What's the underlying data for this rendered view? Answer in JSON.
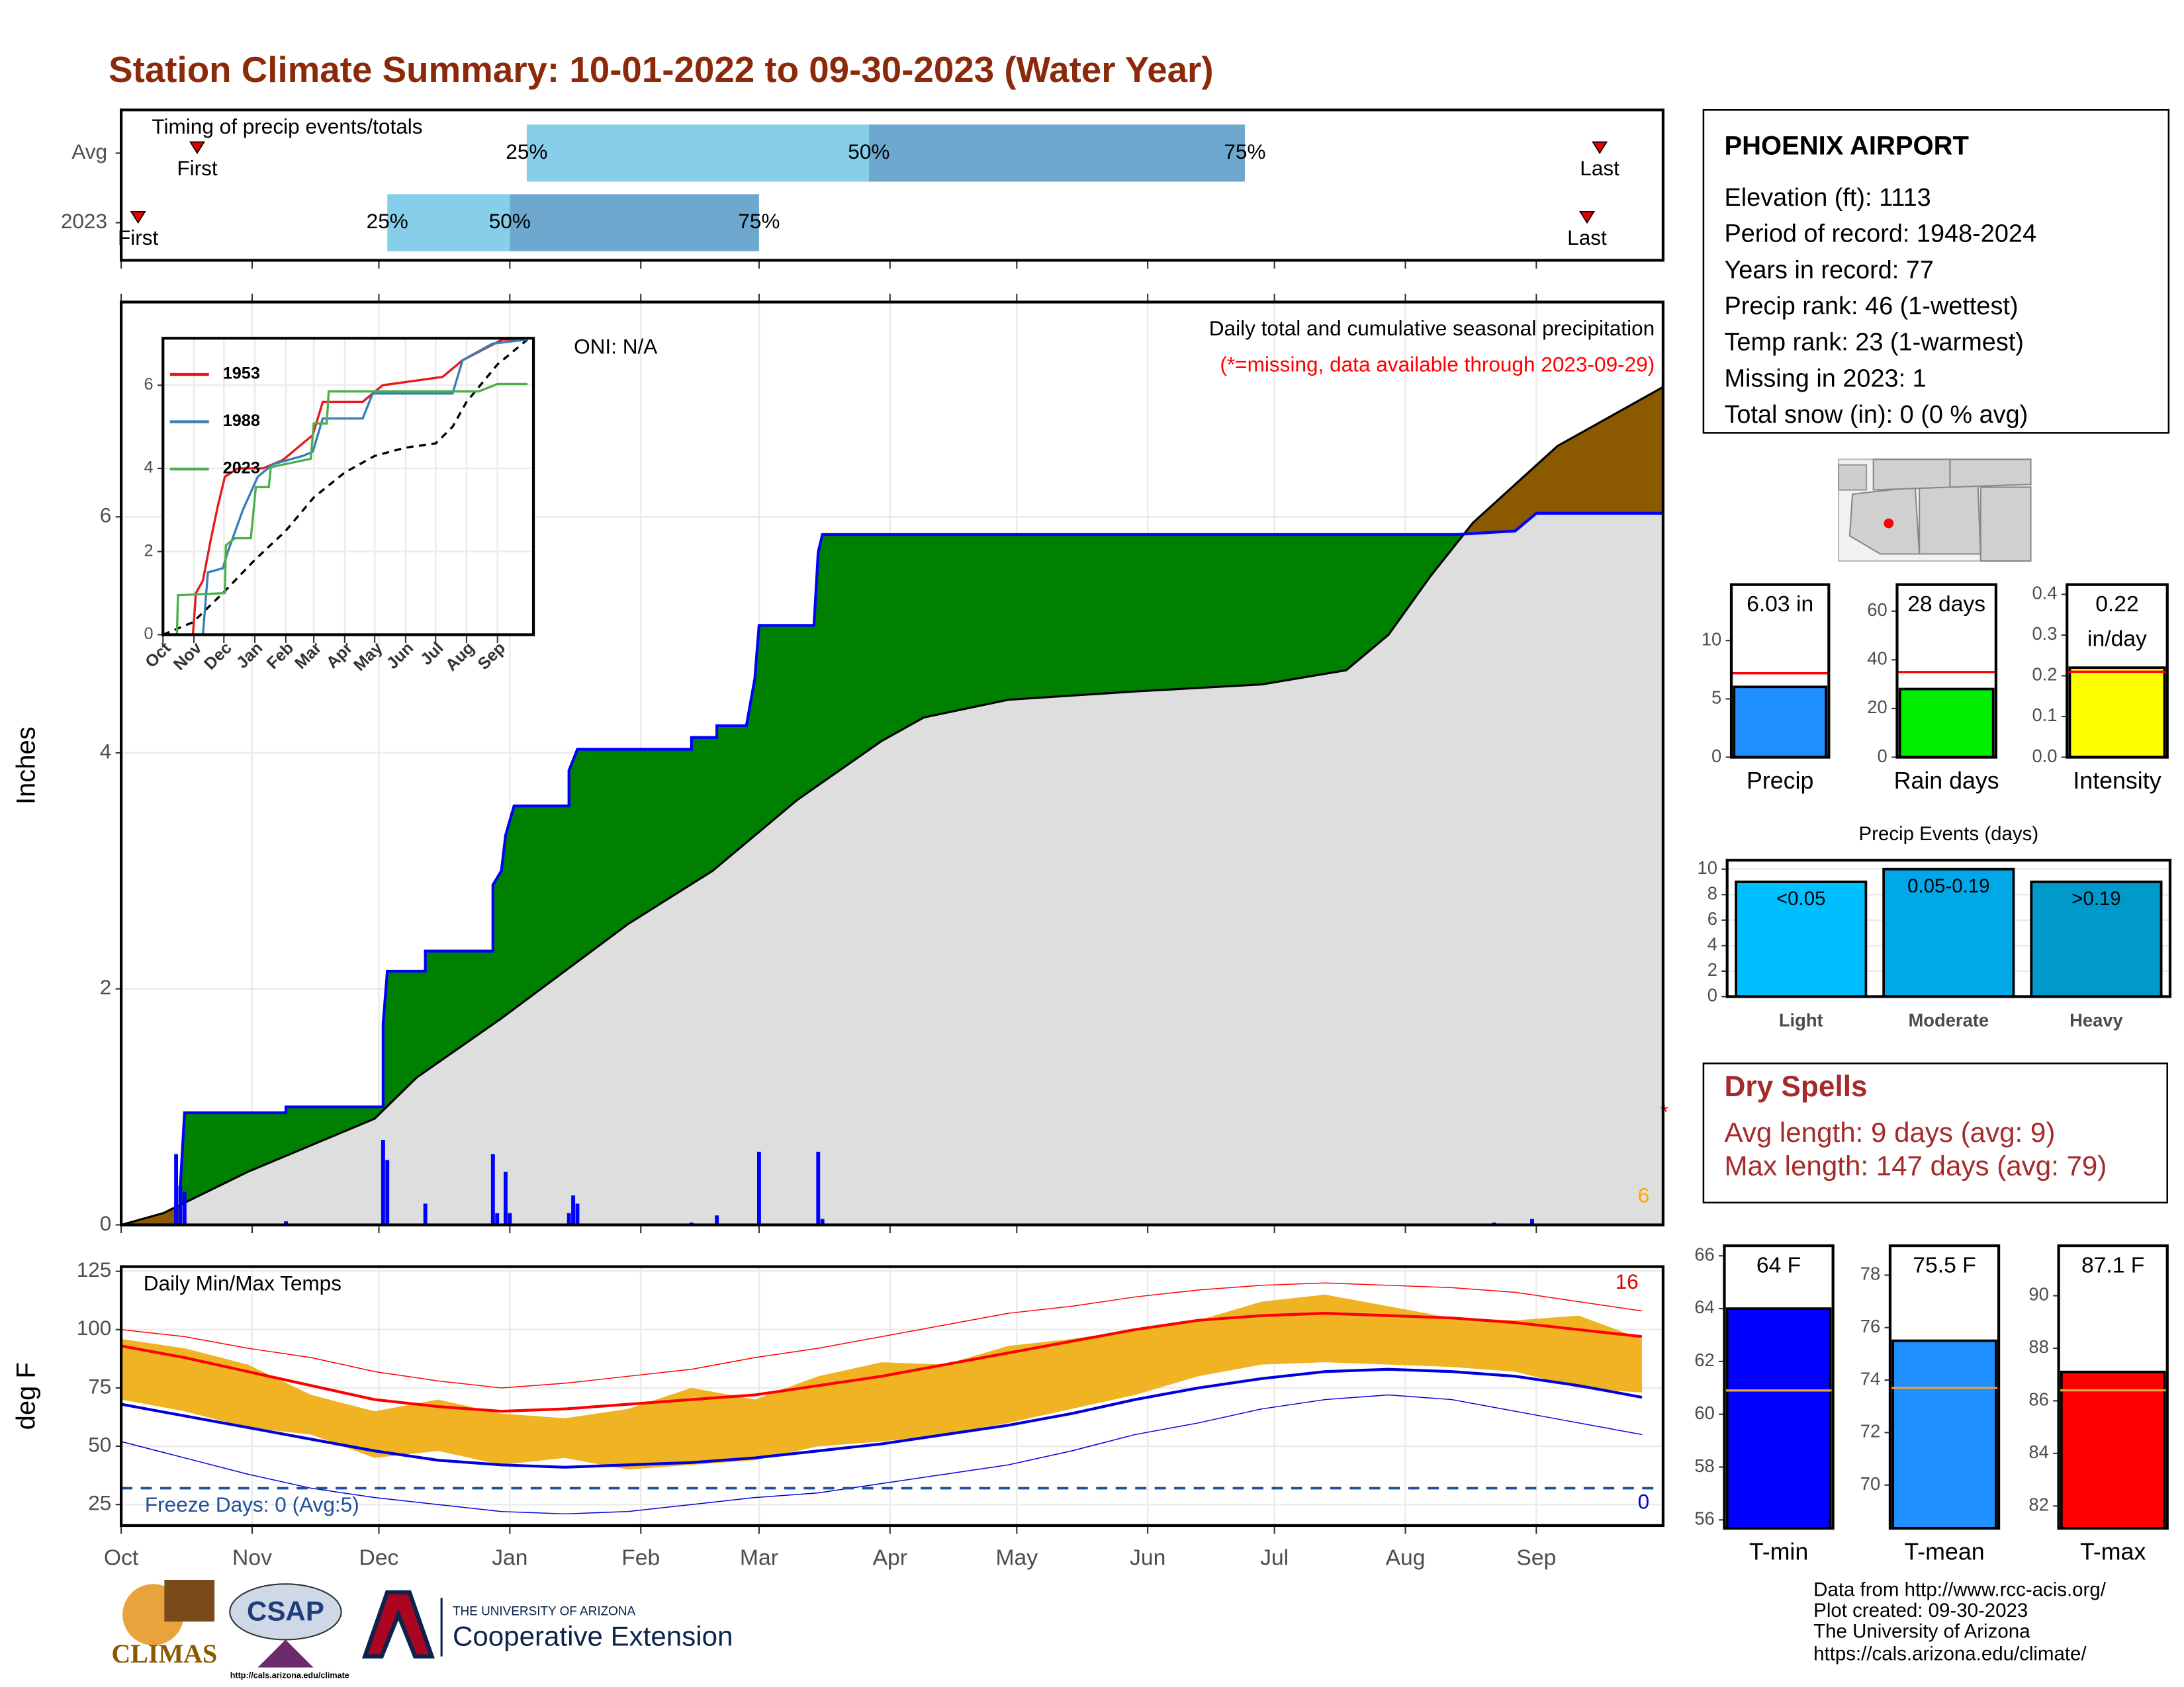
{
  "title": "Station Climate Summary: 10-01-2022 to 09-30-2023 (Water Year)",
  "station": {
    "name": "PHOENIX AIRPORT",
    "lines": [
      "Elevation (ft): 1113",
      "Period of record: 1948-2024",
      "Years in record: 77",
      "Precip rank: 46 (1-wettest)",
      "Temp rank: 23 (1-warmest)",
      "Missing in 2023: 1",
      "Total snow (in): 0 (0 % avg)"
    ]
  },
  "dry_spells": {
    "title": "Dry Spells",
    "lines": [
      "Avg length: 9 days (avg: 9)",
      "Max length: 147 days (avg: 79)"
    ]
  },
  "credits": [
    "Data from http://www.rcc-acis.org/",
    "Plot created: 09-30-2023",
    "The University of Arizona",
    "https://cals.arizona.edu/climate/"
  ],
  "logos": {
    "climas": "CLIMAS",
    "csap": "CSAP",
    "csap_url": "http://cals.arizona.edu/climate",
    "university": "THE UNIVERSITY OF ARIZONA",
    "extension": "Cooperative Extension"
  },
  "chart_data": [
    {
      "type": "timing",
      "title": "Timing of precip events/totals",
      "categories": [
        "Avg",
        "2023"
      ],
      "first": [
        18,
        4
      ],
      "p25": [
        96,
        63
      ],
      "p50": [
        177,
        92
      ],
      "p75": [
        266,
        151
      ],
      "last": [
        350,
        347
      ],
      "first_label": "First",
      "last_label": "Last",
      "percentile_labels": [
        "25%",
        "50%",
        "75%"
      ],
      "colors": [
        "#87ceeb",
        "#6fa8cf"
      ],
      "marker_color": "#e00000",
      "xlim": [
        0,
        365
      ],
      "xticks": [
        0,
        31,
        61,
        92,
        123,
        151,
        182,
        212,
        243,
        273,
        304,
        335
      ]
    },
    {
      "type": "cumulative",
      "title": "Daily total and cumulative seasonal precipitation",
      "subtitle": "(*=missing, data available through 2023-09-29)",
      "y_label": "Inches",
      "annotations": [
        "ONI: N/A",
        "*",
        "6"
      ],
      "annotation_colors": [
        "#000000",
        "#ff0000",
        "#ffa500"
      ],
      "cumulative_x": [
        0,
        14,
        14,
        15,
        39,
        39,
        62,
        62,
        63,
        72,
        72,
        88,
        88,
        90,
        91,
        93,
        106,
        106,
        108,
        135,
        135,
        141,
        141,
        148,
        150,
        151,
        164,
        165,
        166,
        316,
        330,
        335,
        365
      ],
      "cumulative_values": [
        0,
        0,
        0.33,
        0.95,
        0.95,
        1.0,
        1.0,
        1.7,
        2.15,
        2.15,
        2.32,
        2.32,
        2.88,
        3.0,
        3.3,
        3.55,
        3.55,
        3.85,
        4.03,
        4.03,
        4.13,
        4.13,
        4.23,
        4.23,
        4.63,
        5.08,
        5.08,
        5.7,
        5.85,
        5.85,
        5.88,
        6.03,
        6.03
      ],
      "average_x": [
        0,
        10,
        30,
        50,
        60,
        70,
        90,
        120,
        140,
        160,
        170,
        180,
        190,
        210,
        240,
        270,
        290,
        300,
        310,
        320,
        340,
        365
      ],
      "average_values": [
        0,
        0.1,
        0.45,
        0.75,
        0.9,
        1.25,
        1.75,
        2.55,
        3.0,
        3.6,
        3.85,
        4.1,
        4.3,
        4.45,
        4.52,
        4.58,
        4.7,
        5.0,
        5.5,
        5.95,
        6.6,
        7.1
      ],
      "daily_x": [
        13,
        14,
        15,
        39,
        62,
        63,
        72,
        88,
        89,
        91,
        92,
        106,
        107,
        108,
        135,
        141,
        151,
        165,
        166,
        171,
        321,
        325,
        334,
        347
      ],
      "daily_values": [
        0.6,
        0.33,
        0.28,
        0.03,
        0.72,
        0.55,
        0.18,
        0.6,
        0.1,
        0.45,
        0.1,
        0.1,
        0.25,
        0.18,
        0.02,
        0.08,
        0.62,
        0.62,
        0.05,
        0.01,
        0.01,
        0.02,
        0.05,
        0.01
      ],
      "fill_above_average": "#008000",
      "fill_below_average": "#8b5a00",
      "fill_average": "#dedede",
      "line_color": "#0000ff",
      "average_line_color": "#000000",
      "bar_color": "#0000ff",
      "xlim": [
        0,
        365
      ],
      "xticks": [
        0,
        31,
        61,
        92,
        123,
        151,
        182,
        212,
        243,
        273,
        304,
        335
      ],
      "ylim": [
        0,
        7.82
      ],
      "yticks": [
        0,
        2,
        4,
        6
      ],
      "grid": true
    },
    {
      "type": "line",
      "series": [
        {
          "name": "1953",
          "color": "#e41a1c",
          "x": [
            0,
            30,
            33,
            40,
            48,
            55,
            62,
            75,
            100,
            120,
            150,
            160,
            200,
            220,
            280,
            300,
            340,
            365
          ],
          "values": [
            0,
            0,
            1.0,
            1.3,
            2.3,
            3.1,
            3.8,
            4.0,
            4.0,
            4.2,
            4.8,
            5.6,
            5.6,
            6.0,
            6.2,
            6.6,
            7.1,
            7.1
          ]
        },
        {
          "name": "1988",
          "color": "#377eb8",
          "x": [
            0,
            40,
            45,
            60,
            65,
            80,
            95,
            110,
            140,
            150,
            160,
            200,
            210,
            290,
            300,
            330,
            365
          ],
          "values": [
            0,
            0,
            1.5,
            1.6,
            2.0,
            3.0,
            3.8,
            4.1,
            4.3,
            4.4,
            5.2,
            5.2,
            5.8,
            5.8,
            6.6,
            7.0,
            7.1
          ]
        },
        {
          "name": "2023",
          "color": "#4daf4a",
          "x": [
            0,
            14,
            15,
            62,
            63,
            72,
            88,
            93,
            106,
            108,
            148,
            151,
            164,
            166,
            316,
            335,
            365
          ],
          "values": [
            0,
            0,
            0.95,
            1.0,
            2.15,
            2.32,
            2.32,
            3.55,
            3.55,
            4.03,
            4.23,
            5.08,
            5.08,
            5.85,
            5.85,
            6.03,
            6.03
          ]
        }
      ],
      "average": {
        "color": "#000000",
        "x": [
          0,
          30,
          60,
          92,
          123,
          151,
          182,
          212,
          243,
          273,
          290,
          304,
          335,
          365
        ],
        "values": [
          0,
          0.3,
          1.0,
          1.8,
          2.5,
          3.3,
          3.9,
          4.3,
          4.5,
          4.6,
          5.0,
          5.6,
          6.5,
          7.1
        ]
      },
      "xlim": [
        0,
        371
      ],
      "xticks": [
        {
          "value": 0,
          "label": "Oct"
        },
        {
          "value": 31,
          "label": "Nov"
        },
        {
          "value": 61,
          "label": "Dec"
        },
        {
          "value": 92,
          "label": "Jan"
        },
        {
          "value": 123,
          "label": "Feb"
        },
        {
          "value": 151,
          "label": "Mar"
        },
        {
          "value": 182,
          "label": "Apr"
        },
        {
          "value": 212,
          "label": "May"
        },
        {
          "value": 243,
          "label": "Jun"
        },
        {
          "value": 273,
          "label": "Jul"
        },
        {
          "value": 304,
          "label": "Aug"
        },
        {
          "value": 335,
          "label": "Sep"
        }
      ],
      "ylim": [
        0,
        7.13
      ],
      "yticks": [
        0,
        2,
        4,
        6
      ],
      "grid": true
    },
    {
      "type": "temperature",
      "title": "Daily Min/Max Temps",
      "y_label": "deg F",
      "annotations": [
        "Freeze Days: 0 (Avg:5)",
        "16",
        "0"
      ],
      "annotation_colors": [
        "#1f4e9a",
        "#e00000",
        "#0000cc"
      ],
      "x": [
        0,
        15,
        30,
        45,
        60,
        75,
        90,
        105,
        120,
        135,
        150,
        165,
        180,
        195,
        210,
        225,
        240,
        255,
        270,
        285,
        300,
        315,
        330,
        345,
        360
      ],
      "high": [
        96,
        92,
        85,
        72,
        65,
        70,
        64,
        62,
        66,
        75,
        70,
        80,
        86,
        85,
        93,
        96,
        100,
        104,
        112,
        115,
        110,
        105,
        104,
        106,
        96
      ],
      "low": [
        70,
        65,
        58,
        55,
        45,
        48,
        42,
        45,
        40,
        42,
        44,
        50,
        52,
        55,
        60,
        66,
        72,
        80,
        85,
        86,
        85,
        84,
        82,
        75,
        73
      ],
      "avg_max": [
        93,
        88,
        82,
        76,
        70,
        67,
        65,
        66,
        68,
        70,
        72,
        76,
        80,
        85,
        90,
        95,
        100,
        104,
        106,
        107,
        106,
        105,
        103,
        100,
        97
      ],
      "avg_min": [
        68,
        63,
        58,
        53,
        48,
        44,
        42,
        41,
        42,
        43,
        45,
        48,
        51,
        55,
        59,
        64,
        70,
        75,
        79,
        82,
        83,
        82,
        80,
        76,
        71
      ],
      "record_max": [
        100,
        97,
        92,
        88,
        82,
        78,
        75,
        77,
        80,
        83,
        88,
        92,
        97,
        102,
        107,
        110,
        114,
        117,
        119,
        120,
        119,
        118,
        116,
        112,
        108
      ],
      "record_min": [
        52,
        45,
        38,
        32,
        28,
        25,
        22,
        21,
        22,
        25,
        28,
        30,
        34,
        38,
        42,
        48,
        55,
        60,
        66,
        70,
        72,
        70,
        65,
        60,
        55
      ],
      "freeze_line": 32,
      "band_color": "#f0b323",
      "max_color": "#ff0000",
      "min_color": "#0000dd",
      "freeze_color": "#1f4e9a",
      "xlim": [
        0,
        365
      ],
      "xticks": [
        {
          "value": 0,
          "label": "Oct"
        },
        {
          "value": 31,
          "label": "Nov"
        },
        {
          "value": 61,
          "label": "Dec"
        },
        {
          "value": 92,
          "label": "Jan"
        },
        {
          "value": 123,
          "label": "Feb"
        },
        {
          "value": 151,
          "label": "Mar"
        },
        {
          "value": 182,
          "label": "Apr"
        },
        {
          "value": 212,
          "label": "May"
        },
        {
          "value": 243,
          "label": "Jun"
        },
        {
          "value": 273,
          "label": "Jul"
        },
        {
          "value": 304,
          "label": "Aug"
        },
        {
          "value": 335,
          "label": "Sep"
        }
      ],
      "ylim": [
        16,
        127
      ],
      "yticks": [
        25,
        50,
        75,
        100,
        125
      ],
      "grid": true
    },
    {
      "type": "bar",
      "categories": [
        "Precip"
      ],
      "values": [
        6.03
      ],
      "value_labels": [
        "6.03 in"
      ],
      "average": [
        7.2
      ],
      "color": "#1e90ff",
      "average_color": "#ff0000",
      "ylim": [
        0,
        14.8
      ],
      "yticks": [
        0,
        5,
        10
      ]
    },
    {
      "type": "bar",
      "categories": [
        "Rain days"
      ],
      "values": [
        28
      ],
      "value_labels": [
        "28 days"
      ],
      "average": [
        35
      ],
      "color": "#00ee00",
      "average_color": "#ff0000",
      "ylim": [
        0,
        70.9
      ],
      "yticks": [
        0,
        20,
        40,
        60
      ]
    },
    {
      "type": "bar",
      "categories": [
        "Intensity"
      ],
      "values": [
        0.22
      ],
      "value_labels": [
        "0.22"
      ],
      "unit_label": "in/day",
      "average": [
        0.21
      ],
      "color": "#ffff00",
      "average_color": "#ff0000",
      "ylim": [
        0,
        0.424
      ],
      "yticks": [
        {
          "value": 0,
          "label": "0.0"
        },
        {
          "value": 0.1,
          "label": "0.1"
        },
        {
          "value": 0.2,
          "label": "0.2"
        },
        {
          "value": 0.3,
          "label": "0.3"
        },
        {
          "value": 0.4,
          "label": "0.4"
        }
      ]
    },
    {
      "type": "bar",
      "title": "Precip Events (days)",
      "categories": [
        "Light",
        "Moderate",
        "Heavy"
      ],
      "values": [
        9,
        10,
        9
      ],
      "bar_labels": [
        "<0.05",
        "0.05-0.19",
        ">0.19"
      ],
      "colors": [
        "#00bfff",
        "#00a8e8",
        "#0099cc"
      ],
      "ylim": [
        0,
        10.7
      ],
      "yticks": [
        0,
        2,
        4,
        6,
        8,
        10
      ],
      "grid": true
    },
    {
      "type": "bar",
      "categories": [
        "T-min"
      ],
      "values": [
        64
      ],
      "value_labels": [
        "64 F"
      ],
      "average": [
        60.9
      ],
      "color": "#0000ff",
      "average_color": "#e8a33d",
      "ylim": [
        55.68,
        66.38
      ],
      "yticks": [
        56,
        58,
        60,
        62,
        64,
        66
      ]
    },
    {
      "type": "bar",
      "categories": [
        "T-mean"
      ],
      "values": [
        75.5
      ],
      "value_labels": [
        "75.5 F"
      ],
      "average": [
        73.7
      ],
      "color": "#1e90ff",
      "average_color": "#e8a33d",
      "ylim": [
        68.35,
        79.12
      ],
      "yticks": [
        70,
        72,
        74,
        76,
        78
      ]
    },
    {
      "type": "bar",
      "categories": [
        "T-max"
      ],
      "values": [
        87.1
      ],
      "value_labels": [
        "87.1 F"
      ],
      "average": [
        86.4
      ],
      "color": "#ff0000",
      "average_color": "#e8a33d",
      "ylim": [
        81.15,
        91.9
      ],
      "yticks": [
        82,
        84,
        86,
        88,
        90
      ]
    }
  ]
}
